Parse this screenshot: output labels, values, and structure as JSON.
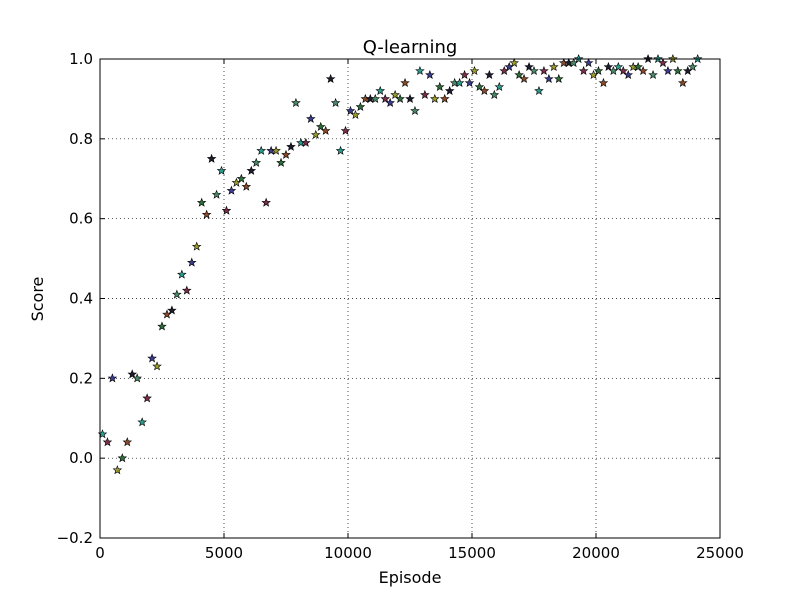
{
  "chart_data": {
    "type": "scatter",
    "title": "Q-learning",
    "xlabel": "Episode",
    "ylabel": "Score",
    "xlim": [
      0,
      25000
    ],
    "ylim": [
      -0.2,
      1.0
    ],
    "xticks": [
      0,
      5000,
      10000,
      15000,
      20000,
      25000
    ],
    "yticks": [
      -0.2,
      0.0,
      0.2,
      0.4,
      0.6,
      0.8,
      1.0
    ],
    "xtick_labels": [
      "0",
      "5000",
      "10000",
      "15000",
      "20000",
      "25000"
    ],
    "ytick_labels": [
      "−0.2",
      "0.0",
      "0.2",
      "0.4",
      "0.6",
      "0.8",
      "1.0"
    ],
    "grid": true,
    "marker": "star",
    "series": [
      {
        "values": [
          {
            "x": 100,
            "y": 0.06
          },
          {
            "x": 300,
            "y": 0.04
          },
          {
            "x": 500,
            "y": 0.2
          },
          {
            "x": 700,
            "y": -0.03
          },
          {
            "x": 900,
            "y": 0.0
          },
          {
            "x": 1100,
            "y": 0.04
          },
          {
            "x": 1300,
            "y": 0.21
          },
          {
            "x": 1500,
            "y": 0.2
          },
          {
            "x": 1700,
            "y": 0.09
          },
          {
            "x": 1900,
            "y": 0.15
          },
          {
            "x": 2100,
            "y": 0.25
          },
          {
            "x": 2300,
            "y": 0.23
          },
          {
            "x": 2500,
            "y": 0.33
          },
          {
            "x": 2700,
            "y": 0.36
          },
          {
            "x": 2900,
            "y": 0.37
          },
          {
            "x": 3100,
            "y": 0.41
          },
          {
            "x": 3300,
            "y": 0.46
          },
          {
            "x": 3500,
            "y": 0.42
          },
          {
            "x": 3700,
            "y": 0.49
          },
          {
            "x": 3900,
            "y": 0.53
          },
          {
            "x": 4100,
            "y": 0.64
          },
          {
            "x": 4300,
            "y": 0.61
          },
          {
            "x": 4500,
            "y": 0.75
          },
          {
            "x": 4700,
            "y": 0.66
          },
          {
            "x": 4900,
            "y": 0.72
          },
          {
            "x": 5100,
            "y": 0.62
          },
          {
            "x": 5300,
            "y": 0.67
          },
          {
            "x": 5500,
            "y": 0.69
          },
          {
            "x": 5700,
            "y": 0.7
          },
          {
            "x": 5900,
            "y": 0.68
          },
          {
            "x": 6100,
            "y": 0.72
          },
          {
            "x": 6300,
            "y": 0.74
          },
          {
            "x": 6500,
            "y": 0.77
          },
          {
            "x": 6700,
            "y": 0.64
          },
          {
            "x": 6900,
            "y": 0.77
          },
          {
            "x": 7100,
            "y": 0.77
          },
          {
            "x": 7300,
            "y": 0.74
          },
          {
            "x": 7500,
            "y": 0.76
          },
          {
            "x": 7700,
            "y": 0.78
          },
          {
            "x": 7900,
            "y": 0.89
          },
          {
            "x": 8100,
            "y": 0.79
          },
          {
            "x": 8300,
            "y": 0.79
          },
          {
            "x": 8500,
            "y": 0.85
          },
          {
            "x": 8700,
            "y": 0.81
          },
          {
            "x": 8900,
            "y": 0.83
          },
          {
            "x": 9100,
            "y": 0.82
          },
          {
            "x": 9300,
            "y": 0.95
          },
          {
            "x": 9500,
            "y": 0.89
          },
          {
            "x": 9700,
            "y": 0.77
          },
          {
            "x": 9900,
            "y": 0.82
          },
          {
            "x": 10100,
            "y": 0.87
          },
          {
            "x": 10300,
            "y": 0.86
          },
          {
            "x": 10500,
            "y": 0.88
          },
          {
            "x": 10700,
            "y": 0.9
          },
          {
            "x": 10900,
            "y": 0.9
          },
          {
            "x": 11100,
            "y": 0.9
          },
          {
            "x": 11300,
            "y": 0.92
          },
          {
            "x": 11500,
            "y": 0.9
          },
          {
            "x": 11700,
            "y": 0.89
          },
          {
            "x": 11900,
            "y": 0.91
          },
          {
            "x": 12100,
            "y": 0.9
          },
          {
            "x": 12300,
            "y": 0.94
          },
          {
            "x": 12500,
            "y": 0.9
          },
          {
            "x": 12700,
            "y": 0.87
          },
          {
            "x": 12900,
            "y": 0.97
          },
          {
            "x": 13100,
            "y": 0.91
          },
          {
            "x": 13300,
            "y": 0.96
          },
          {
            "x": 13500,
            "y": 0.9
          },
          {
            "x": 13700,
            "y": 0.93
          },
          {
            "x": 13900,
            "y": 0.9
          },
          {
            "x": 14100,
            "y": 0.92
          },
          {
            "x": 14300,
            "y": 0.94
          },
          {
            "x": 14500,
            "y": 0.94
          },
          {
            "x": 14700,
            "y": 0.96
          },
          {
            "x": 14900,
            "y": 0.94
          },
          {
            "x": 15100,
            "y": 0.97
          },
          {
            "x": 15300,
            "y": 0.93
          },
          {
            "x": 15500,
            "y": 0.92
          },
          {
            "x": 15700,
            "y": 0.96
          },
          {
            "x": 15900,
            "y": 0.91
          },
          {
            "x": 16100,
            "y": 0.93
          },
          {
            "x": 16300,
            "y": 0.97
          },
          {
            "x": 16500,
            "y": 0.98
          },
          {
            "x": 16700,
            "y": 0.99
          },
          {
            "x": 16900,
            "y": 0.96
          },
          {
            "x": 17100,
            "y": 0.95
          },
          {
            "x": 17300,
            "y": 0.98
          },
          {
            "x": 17500,
            "y": 0.97
          },
          {
            "x": 17700,
            "y": 0.92
          },
          {
            "x": 17900,
            "y": 0.97
          },
          {
            "x": 18100,
            "y": 0.95
          },
          {
            "x": 18300,
            "y": 0.98
          },
          {
            "x": 18500,
            "y": 0.95
          },
          {
            "x": 18700,
            "y": 0.99
          },
          {
            "x": 18900,
            "y": 0.99
          },
          {
            "x": 19100,
            "y": 0.99
          },
          {
            "x": 19300,
            "y": 1.0
          },
          {
            "x": 19500,
            "y": 0.97
          },
          {
            "x": 19700,
            "y": 0.99
          },
          {
            "x": 19900,
            "y": 0.96
          },
          {
            "x": 20100,
            "y": 0.97
          },
          {
            "x": 20300,
            "y": 0.94
          },
          {
            "x": 20500,
            "y": 0.98
          },
          {
            "x": 20700,
            "y": 0.97
          },
          {
            "x": 20900,
            "y": 0.98
          },
          {
            "x": 21100,
            "y": 0.97
          },
          {
            "x": 21300,
            "y": 0.96
          },
          {
            "x": 21500,
            "y": 0.98
          },
          {
            "x": 21700,
            "y": 0.98
          },
          {
            "x": 21900,
            "y": 0.97
          },
          {
            "x": 22100,
            "y": 1.0
          },
          {
            "x": 22300,
            "y": 0.96
          },
          {
            "x": 22500,
            "y": 1.0
          },
          {
            "x": 22700,
            "y": 0.99
          },
          {
            "x": 22900,
            "y": 0.97
          },
          {
            "x": 23100,
            "y": 1.0
          },
          {
            "x": 23300,
            "y": 0.97
          },
          {
            "x": 23500,
            "y": 0.94
          },
          {
            "x": 23700,
            "y": 0.97
          },
          {
            "x": 23900,
            "y": 0.98
          },
          {
            "x": 24100,
            "y": 1.0
          }
        ]
      }
    ],
    "marker_colors": [
      "#2a9d8f",
      "#7a2e4a",
      "#3b3b8f",
      "#9a9a2e",
      "#2e6e3a",
      "#8a4a2a",
      "#1c1c2e",
      "#4a8a6a"
    ]
  }
}
